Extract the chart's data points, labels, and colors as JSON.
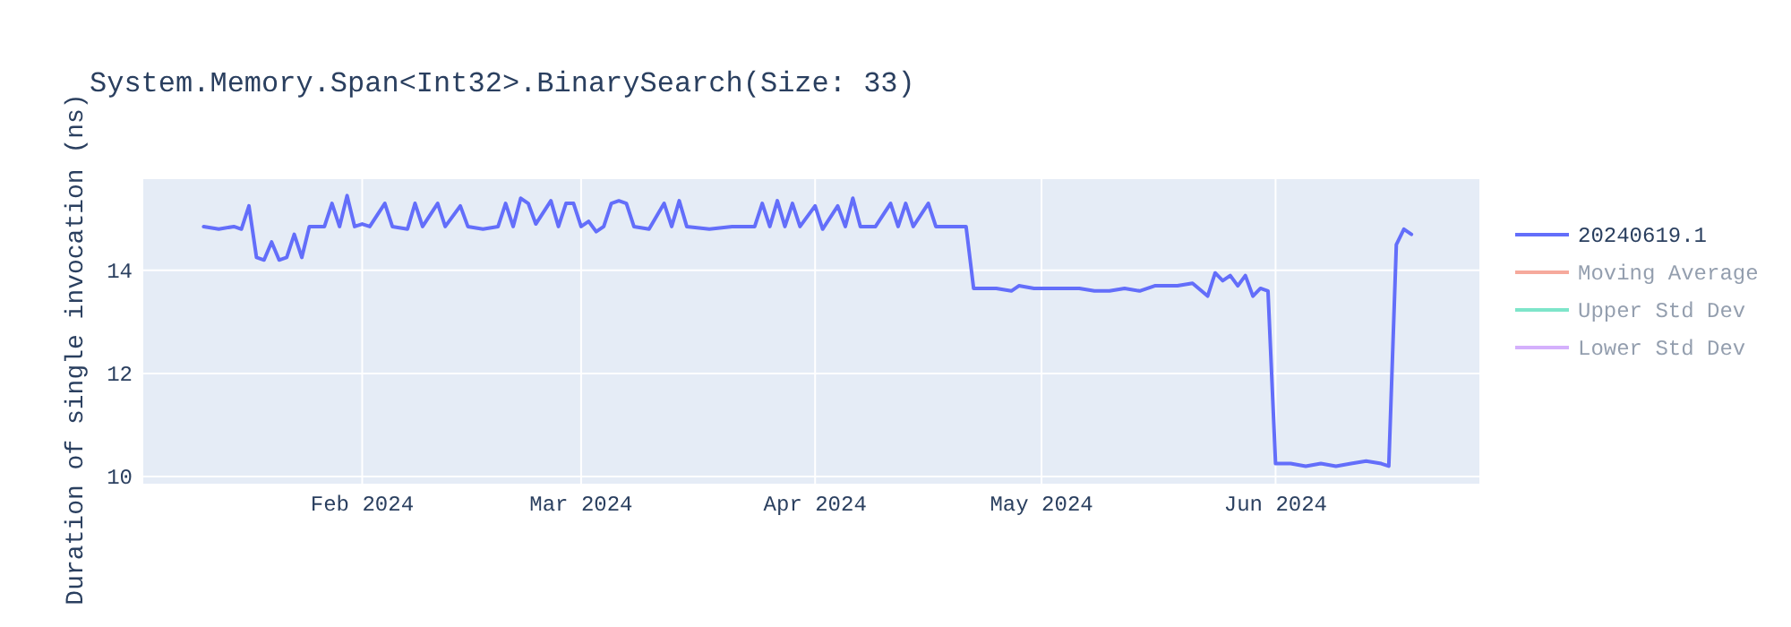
{
  "chart_data": {
    "type": "line",
    "title": "System.Memory.Span<Int32>.BinarySearch(Size: 33)",
    "ylabel": "Duration of single invocation (ns)",
    "x": [
      "2024-01-11",
      "2024-01-13",
      "2024-01-15",
      "2024-01-16",
      "2024-01-17",
      "2024-01-18",
      "2024-01-19",
      "2024-01-20",
      "2024-01-21",
      "2024-01-22",
      "2024-01-23",
      "2024-01-24",
      "2024-01-25",
      "2024-01-27",
      "2024-01-28",
      "2024-01-29",
      "2024-01-30",
      "2024-01-31",
      "2024-02-01",
      "2024-02-02",
      "2024-02-04",
      "2024-02-05",
      "2024-02-07",
      "2024-02-08",
      "2024-02-09",
      "2024-02-11",
      "2024-02-12",
      "2024-02-14",
      "2024-02-15",
      "2024-02-17",
      "2024-02-19",
      "2024-02-20",
      "2024-02-21",
      "2024-02-22",
      "2024-02-23",
      "2024-02-24",
      "2024-02-26",
      "2024-02-27",
      "2024-02-28",
      "2024-02-29",
      "2024-03-01",
      "2024-03-02",
      "2024-03-03",
      "2024-03-04",
      "2024-03-05",
      "2024-03-06",
      "2024-03-07",
      "2024-03-08",
      "2024-03-10",
      "2024-03-12",
      "2024-03-13",
      "2024-03-14",
      "2024-03-15",
      "2024-03-18",
      "2024-03-21",
      "2024-03-24",
      "2024-03-25",
      "2024-03-26",
      "2024-03-27",
      "2024-03-28",
      "2024-03-29",
      "2024-03-30",
      "2024-04-01",
      "2024-04-02",
      "2024-04-04",
      "2024-04-05",
      "2024-04-06",
      "2024-04-07",
      "2024-04-09",
      "2024-04-11",
      "2024-04-12",
      "2024-04-13",
      "2024-04-14",
      "2024-04-16",
      "2024-04-17",
      "2024-04-19",
      "2024-04-21",
      "2024-04-22",
      "2024-04-25",
      "2024-04-27",
      "2024-04-28",
      "2024-04-30",
      "2024-05-03",
      "2024-05-06",
      "2024-05-08",
      "2024-05-10",
      "2024-05-12",
      "2024-05-14",
      "2024-05-16",
      "2024-05-19",
      "2024-05-21",
      "2024-05-23",
      "2024-05-24",
      "2024-05-25",
      "2024-05-26",
      "2024-05-27",
      "2024-05-28",
      "2024-05-29",
      "2024-05-30",
      "2024-05-31",
      "2024-06-01",
      "2024-06-03",
      "2024-06-05",
      "2024-06-07",
      "2024-06-09",
      "2024-06-11",
      "2024-06-13",
      "2024-06-15",
      "2024-06-16",
      "2024-06-17",
      "2024-06-18",
      "2024-06-19"
    ],
    "series": [
      {
        "name": "20240619.1",
        "color": "#636efa",
        "values": [
          14.85,
          14.8,
          14.85,
          14.8,
          15.25,
          14.25,
          14.2,
          14.55,
          14.2,
          14.25,
          14.7,
          14.25,
          14.85,
          14.85,
          15.3,
          14.85,
          15.45,
          14.85,
          14.9,
          14.85,
          15.3,
          14.85,
          14.8,
          15.3,
          14.85,
          15.3,
          14.85,
          15.25,
          14.85,
          14.8,
          14.85,
          15.3,
          14.85,
          15.4,
          15.3,
          14.9,
          15.35,
          14.85,
          15.3,
          15.3,
          14.85,
          14.95,
          14.75,
          14.85,
          15.3,
          15.35,
          15.3,
          14.85,
          14.8,
          15.3,
          14.85,
          15.35,
          14.85,
          14.8,
          14.85,
          14.85,
          15.3,
          14.85,
          15.35,
          14.85,
          15.3,
          14.85,
          15.25,
          14.8,
          15.25,
          14.85,
          15.4,
          14.85,
          14.85,
          15.3,
          14.85,
          15.3,
          14.85,
          15.3,
          14.85,
          14.85,
          14.85,
          13.65,
          13.65,
          13.6,
          13.7,
          13.65,
          13.65,
          13.65,
          13.6,
          13.6,
          13.65,
          13.6,
          13.7,
          13.7,
          13.75,
          13.5,
          13.95,
          13.8,
          13.9,
          13.7,
          13.9,
          13.5,
          13.65,
          13.6,
          10.25,
          10.25,
          10.2,
          10.25,
          10.2,
          10.25,
          10.3,
          10.25,
          10.2,
          14.5,
          14.8,
          14.7
        ]
      },
      {
        "name": "Moving Average",
        "color": "#ef553b",
        "values": [
          null,
          null,
          null,
          null,
          null,
          null,
          null,
          null,
          null,
          null,
          null,
          null,
          null,
          null,
          null,
          null,
          null,
          null,
          null,
          null,
          null,
          null,
          null,
          null,
          null,
          null,
          null,
          null,
          null,
          null,
          null,
          null,
          null,
          null,
          null,
          null,
          null,
          null,
          null,
          null,
          null,
          null,
          null,
          null,
          null,
          null,
          null,
          null,
          null,
          null,
          null,
          null,
          null,
          null,
          null,
          null,
          null,
          null,
          null,
          null,
          null,
          null,
          null,
          null,
          null,
          null,
          null,
          null,
          null,
          null,
          null,
          null,
          null,
          null,
          null,
          null,
          null,
          null,
          null,
          null,
          null,
          null,
          null,
          null,
          null,
          null,
          null,
          null,
          null,
          null,
          null,
          null,
          null,
          null,
          null,
          null,
          null,
          null,
          null,
          null,
          null,
          null,
          null,
          null,
          null,
          null,
          null,
          null,
          null,
          null,
          null,
          null
        ]
      },
      {
        "name": "Upper Std Dev",
        "color": "#00cc96",
        "values": [
          null,
          null,
          null,
          null,
          null,
          null,
          null,
          null,
          null,
          null,
          null,
          null,
          null,
          null,
          null,
          null,
          null,
          null,
          null,
          null,
          null,
          null,
          null,
          null,
          null,
          null,
          null,
          null,
          null,
          null,
          null,
          null,
          null,
          null,
          null,
          null,
          null,
          null,
          null,
          null,
          null,
          null,
          null,
          null,
          null,
          null,
          null,
          null,
          null,
          null,
          null,
          null,
          null,
          null,
          null,
          null,
          null,
          null,
          null,
          null,
          null,
          null,
          null,
          null,
          null,
          null,
          null,
          null,
          null,
          null,
          null,
          null,
          null,
          null,
          null,
          null,
          null,
          null,
          null,
          null,
          null,
          null,
          null,
          null,
          null,
          null,
          null,
          null,
          null,
          null,
          null,
          null,
          null,
          null,
          null,
          null,
          null,
          null,
          null,
          null,
          null,
          null,
          null,
          null,
          null,
          null,
          null,
          null,
          null,
          null,
          null,
          null
        ]
      },
      {
        "name": "Lower Std Dev",
        "color": "#ab63fa",
        "values": [
          null,
          null,
          null,
          null,
          null,
          null,
          null,
          null,
          null,
          null,
          null,
          null,
          null,
          null,
          null,
          null,
          null,
          null,
          null,
          null,
          null,
          null,
          null,
          null,
          null,
          null,
          null,
          null,
          null,
          null,
          null,
          null,
          null,
          null,
          null,
          null,
          null,
          null,
          null,
          null,
          null,
          null,
          null,
          null,
          null,
          null,
          null,
          null,
          null,
          null,
          null,
          null,
          null,
          null,
          null,
          null,
          null,
          null,
          null,
          null,
          null,
          null,
          null,
          null,
          null,
          null,
          null,
          null,
          null,
          null,
          null,
          null,
          null,
          null,
          null,
          null,
          null,
          null,
          null,
          null,
          null,
          null,
          null,
          null,
          null,
          null,
          null,
          null,
          null,
          null,
          null,
          null,
          null,
          null,
          null,
          null,
          null,
          null,
          null,
          null,
          null,
          null,
          null,
          null,
          null,
          null,
          null,
          null,
          null,
          null,
          null,
          null
        ]
      }
    ],
    "xlim": [
      "2024-01-03",
      "2024-06-28"
    ],
    "xticks": [
      {
        "value": "2024-02-01",
        "label": "Feb 2024"
      },
      {
        "value": "2024-03-01",
        "label": "Mar 2024"
      },
      {
        "value": "2024-04-01",
        "label": "Apr 2024"
      },
      {
        "value": "2024-05-01",
        "label": "May 2024"
      },
      {
        "value": "2024-06-01",
        "label": "Jun 2024"
      }
    ],
    "ylim": [
      9.86,
      15.77
    ],
    "yticks": [
      10,
      12,
      14
    ],
    "grid": true,
    "legend": "top right",
    "marker": "none",
    "line_style": "solid"
  }
}
